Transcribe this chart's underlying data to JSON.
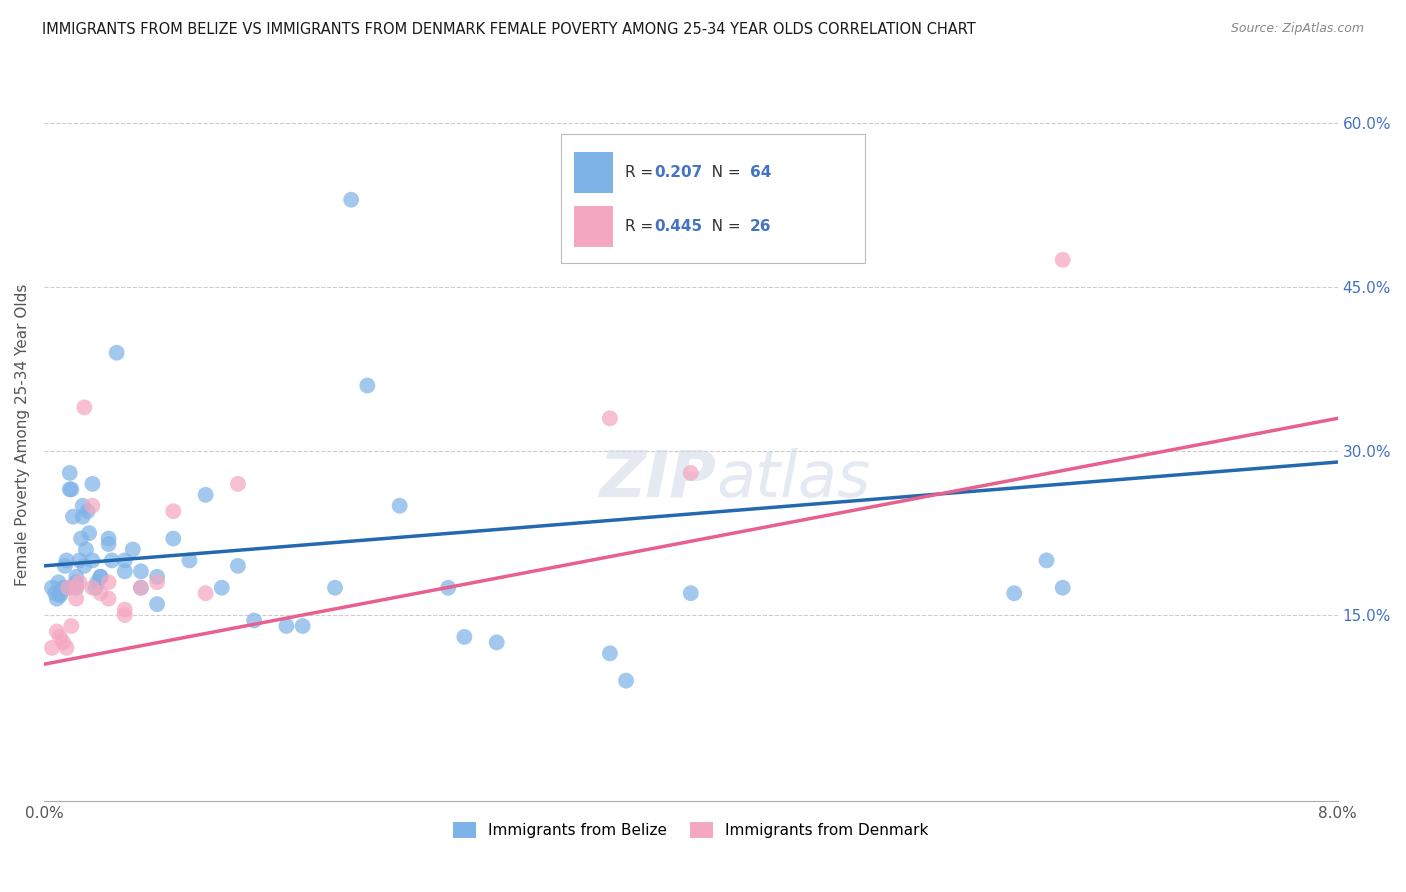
{
  "title": "IMMIGRANTS FROM BELIZE VS IMMIGRANTS FROM DENMARK FEMALE POVERTY AMONG 25-34 YEAR OLDS CORRELATION CHART",
  "source": "Source: ZipAtlas.com",
  "ylabel": "Female Poverty Among 25-34 Year Olds",
  "ylabel_right_ticks": [
    "60.0%",
    "45.0%",
    "30.0%",
    "15.0%"
  ],
  "ylabel_right_vals": [
    0.6,
    0.45,
    0.3,
    0.15
  ],
  "xlim": [
    0.0,
    0.08
  ],
  "ylim": [
    -0.02,
    0.65
  ],
  "belize_R": 0.207,
  "belize_N": 64,
  "denmark_R": 0.445,
  "denmark_N": 26,
  "belize_color": "#7EB3E8",
  "denmark_color": "#F4A7C0",
  "belize_line_color": "#2469B0",
  "denmark_line_color": "#E86090",
  "background_color": "#FFFFFF",
  "grid_color": "#CCCCCC",
  "watermark": "ZIPatlas",
  "watermark_color": "#D0D8E8",
  "legend_label_belize": "Immigrants from Belize",
  "legend_label_denmark": "Immigrants from Denmark",
  "belize_x": [
    0.0005,
    0.0007,
    0.0008,
    0.0009,
    0.001,
    0.001,
    0.001,
    0.0012,
    0.0013,
    0.0014,
    0.0015,
    0.0016,
    0.0016,
    0.0017,
    0.0018,
    0.002,
    0.002,
    0.002,
    0.0022,
    0.0023,
    0.0024,
    0.0024,
    0.0025,
    0.0026,
    0.0027,
    0.0028,
    0.003,
    0.003,
    0.0032,
    0.0033,
    0.0035,
    0.0035,
    0.004,
    0.004,
    0.0042,
    0.0045,
    0.005,
    0.005,
    0.0055,
    0.006,
    0.006,
    0.007,
    0.007,
    0.008,
    0.009,
    0.01,
    0.011,
    0.012,
    0.013,
    0.015,
    0.016,
    0.018,
    0.019,
    0.02,
    0.022,
    0.025,
    0.026,
    0.028,
    0.035,
    0.036,
    0.04,
    0.06,
    0.062,
    0.063
  ],
  "belize_y": [
    0.175,
    0.17,
    0.165,
    0.18,
    0.17,
    0.172,
    0.168,
    0.175,
    0.195,
    0.2,
    0.175,
    0.265,
    0.28,
    0.265,
    0.24,
    0.175,
    0.18,
    0.185,
    0.2,
    0.22,
    0.24,
    0.25,
    0.195,
    0.21,
    0.245,
    0.225,
    0.2,
    0.27,
    0.175,
    0.18,
    0.185,
    0.185,
    0.215,
    0.22,
    0.2,
    0.39,
    0.19,
    0.2,
    0.21,
    0.175,
    0.19,
    0.16,
    0.185,
    0.22,
    0.2,
    0.26,
    0.175,
    0.195,
    0.145,
    0.14,
    0.14,
    0.175,
    0.53,
    0.36,
    0.25,
    0.175,
    0.13,
    0.125,
    0.115,
    0.09,
    0.17,
    0.17,
    0.2,
    0.175
  ],
  "denmark_x": [
    0.0005,
    0.0008,
    0.001,
    0.0012,
    0.0014,
    0.0015,
    0.0017,
    0.002,
    0.002,
    0.0022,
    0.0025,
    0.003,
    0.003,
    0.0035,
    0.004,
    0.004,
    0.005,
    0.005,
    0.006,
    0.007,
    0.008,
    0.01,
    0.012,
    0.035,
    0.04,
    0.063
  ],
  "denmark_y": [
    0.12,
    0.135,
    0.13,
    0.125,
    0.12,
    0.175,
    0.14,
    0.165,
    0.175,
    0.18,
    0.34,
    0.175,
    0.25,
    0.17,
    0.165,
    0.18,
    0.155,
    0.15,
    0.175,
    0.18,
    0.245,
    0.17,
    0.27,
    0.33,
    0.28,
    0.475
  ],
  "belize_line_x": [
    0.0,
    0.08
  ],
  "belize_line_y": [
    0.195,
    0.29
  ],
  "denmark_line_x": [
    0.0,
    0.08
  ],
  "denmark_line_y": [
    0.105,
    0.33
  ]
}
